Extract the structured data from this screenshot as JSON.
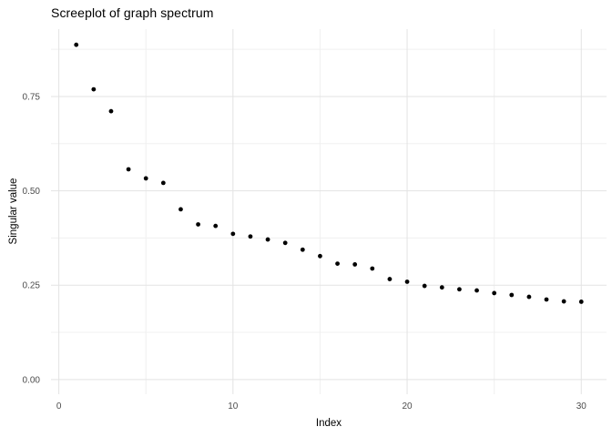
{
  "chart_data": {
    "type": "scatter",
    "title": "Screeplot of graph spectrum",
    "xlabel": "Index",
    "ylabel": "Singular value",
    "x": [
      1,
      2,
      3,
      4,
      5,
      6,
      7,
      8,
      9,
      10,
      11,
      12,
      13,
      14,
      15,
      16,
      17,
      18,
      19,
      20,
      21,
      22,
      23,
      24,
      25,
      26,
      27,
      28,
      29,
      30
    ],
    "y": [
      0.887,
      0.769,
      0.711,
      0.557,
      0.533,
      0.521,
      0.451,
      0.411,
      0.407,
      0.386,
      0.379,
      0.371,
      0.362,
      0.344,
      0.327,
      0.307,
      0.305,
      0.294,
      0.266,
      0.259,
      0.248,
      0.244,
      0.239,
      0.236,
      0.229,
      0.224,
      0.219,
      0.212,
      0.207,
      0.206
    ],
    "xlim": [
      -0.45,
      31.45
    ],
    "ylim": [
      -0.039,
      0.9285
    ],
    "x_ticks": [
      {
        "value": 0,
        "label": "0"
      },
      {
        "value": 10,
        "label": "10"
      },
      {
        "value": 20,
        "label": "20"
      },
      {
        "value": 30,
        "label": "30"
      }
    ],
    "y_ticks": [
      {
        "value": 0.0,
        "label": "0.00"
      },
      {
        "value": 0.25,
        "label": "0.25"
      },
      {
        "value": 0.5,
        "label": "0.50"
      },
      {
        "value": 0.75,
        "label": "0.75"
      }
    ],
    "x_minor_ticks": [
      5,
      15,
      25
    ],
    "y_minor_ticks": [
      0.125,
      0.375,
      0.625,
      0.875
    ],
    "grid": true,
    "legend": "none",
    "point_radius": 2.4,
    "colors": {
      "background": "#FFFFFF",
      "point": "#000000",
      "grid_major": "#E3E3E3",
      "grid_minor": "#F0F0F0",
      "tick_label": "#4D4D4D",
      "title": "#000000",
      "axis_title": "#000000"
    }
  }
}
